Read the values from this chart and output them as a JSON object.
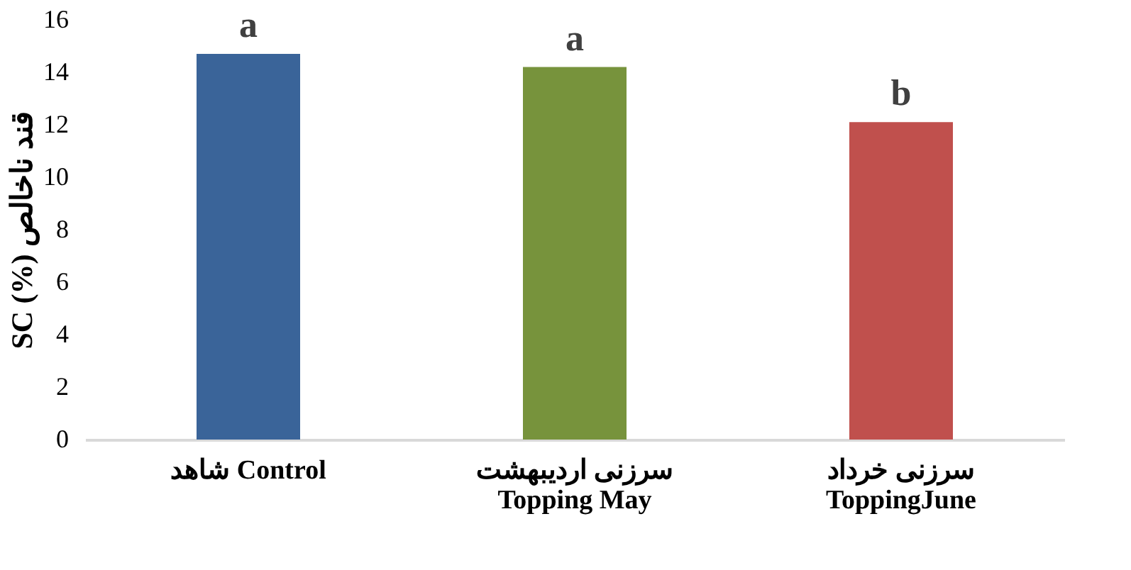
{
  "chart_data": {
    "type": "bar",
    "ylabel": "SC (%)  قند ناخالص",
    "categories": [
      "شاهد  Control",
      "سرزنی اردیبهشت\nTopping May",
      "سرزنی خرداد\nToppingJune"
    ],
    "values": [
      14.7,
      14.2,
      12.1
    ],
    "colors": [
      "#3a6499",
      "#77933c",
      "#c0504d"
    ],
    "ylim": [
      0,
      16
    ],
    "yticks": [
      0,
      2,
      4,
      6,
      8,
      10,
      12,
      14,
      16
    ],
    "grid": false,
    "annotations": [
      {
        "text": "a",
        "x": "شاهد  Control",
        "y": 14.7
      },
      {
        "text": "a",
        "x": "سرزنی اردیبهشت\nTopping May",
        "y": 14.2
      },
      {
        "text": "b",
        "x": "سرزنی خرداد\nToppingJune",
        "y": 12.1
      }
    ]
  }
}
